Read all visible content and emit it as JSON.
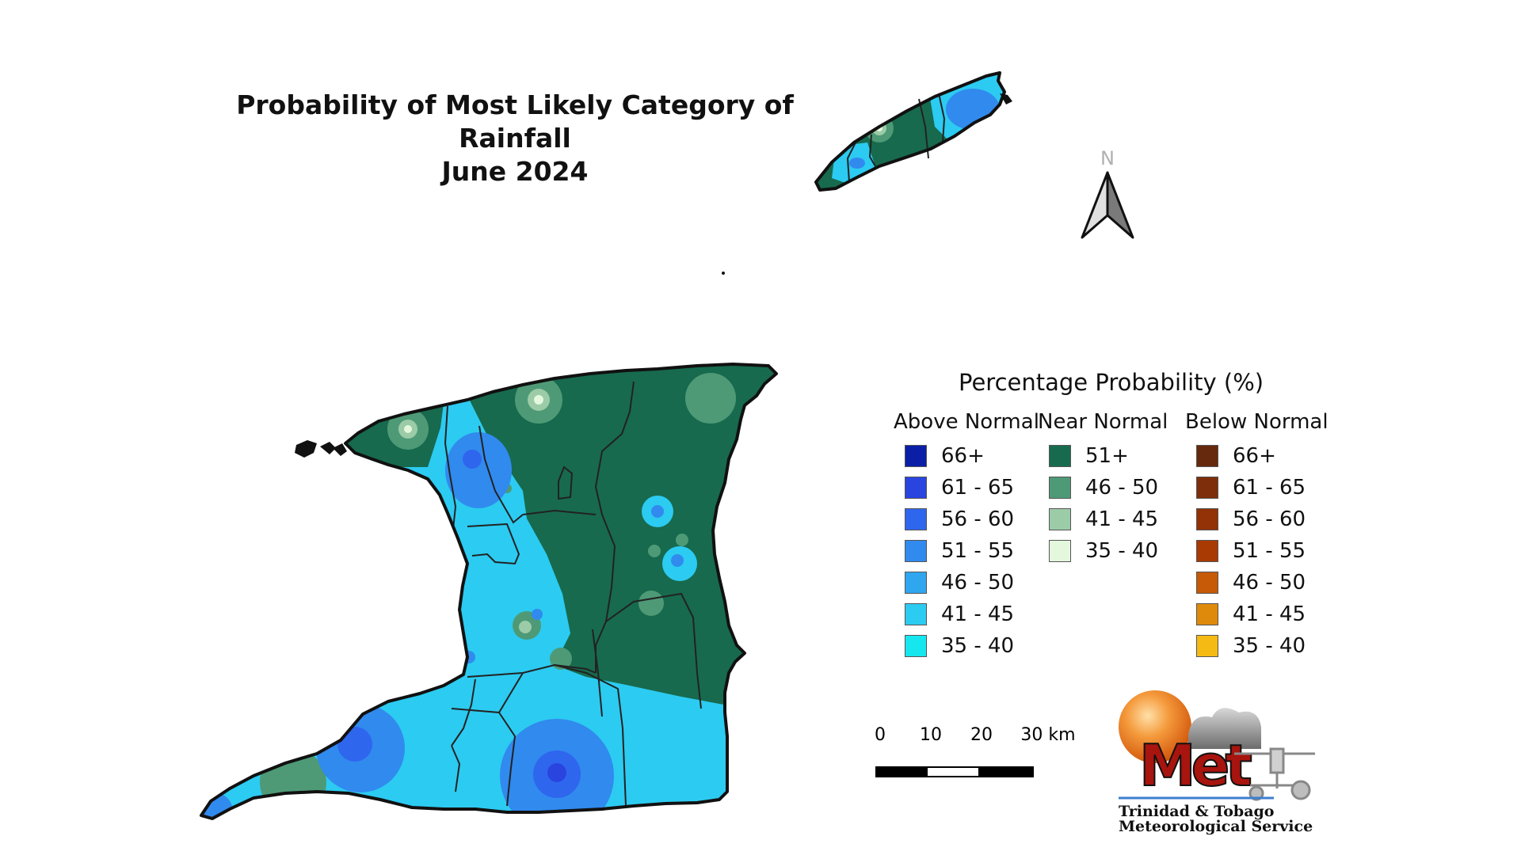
{
  "title": {
    "line1": "Probability of Most Likely Category of Rainfall",
    "line2": "June 2024"
  },
  "north_arrow": {
    "label": "N"
  },
  "legend": {
    "title": "Percentage Probability (%)",
    "columns": [
      {
        "heading": "Above Normal",
        "items": [
          {
            "label": "66+",
            "color": "#0a1fa6"
          },
          {
            "label": "61 - 65",
            "color": "#2a44e0"
          },
          {
            "label": "56 - 60",
            "color": "#2f66ee"
          },
          {
            "label": "51 - 55",
            "color": "#318aee"
          },
          {
            "label": "46 - 50",
            "color": "#2fa6ee"
          },
          {
            "label": "41 - 45",
            "color": "#2ccbf1"
          },
          {
            "label": "35 - 40",
            "color": "#16e6ee"
          }
        ]
      },
      {
        "heading": "Near Normal",
        "items": [
          {
            "label": "51+",
            "color": "#176a4e"
          },
          {
            "label": "46 - 50",
            "color": "#4e9a76"
          },
          {
            "label": "41 - 45",
            "color": "#9ccba8"
          },
          {
            "label": "35 - 40",
            "color": "#e4f8de"
          }
        ]
      },
      {
        "heading": "Below Normal",
        "items": [
          {
            "label": "66+",
            "color": "#66290d"
          },
          {
            "label": "61 - 65",
            "color": "#7e2e0a"
          },
          {
            "label": "56 - 60",
            "color": "#923206"
          },
          {
            "label": "51 - 55",
            "color": "#a93a04"
          },
          {
            "label": "46 - 50",
            "color": "#c65a06"
          },
          {
            "label": "41 - 45",
            "color": "#e08a0c"
          },
          {
            "label": "35 - 40",
            "color": "#f5ba14"
          }
        ]
      }
    ]
  },
  "scale": {
    "labels": [
      "0",
      "10",
      "20",
      "30 km"
    ],
    "segment_colors": [
      "#000000",
      "#ffffff",
      "#000000"
    ]
  },
  "logo": {
    "icon": "met-service-logo",
    "text": "Met",
    "line1": "Trinidad & Tobago",
    "line2": "Meteorological Service"
  },
  "map_colors": {
    "above_41_45": "#2ccbf1",
    "above_51_55": "#318aee",
    "above_56_60": "#2f66ee",
    "above_61_65": "#2a44e0",
    "near_51_plus": "#176a4e",
    "near_46_50": "#4e9a76",
    "near_41_45": "#9ccba8",
    "near_35_40": "#e4f8de"
  }
}
